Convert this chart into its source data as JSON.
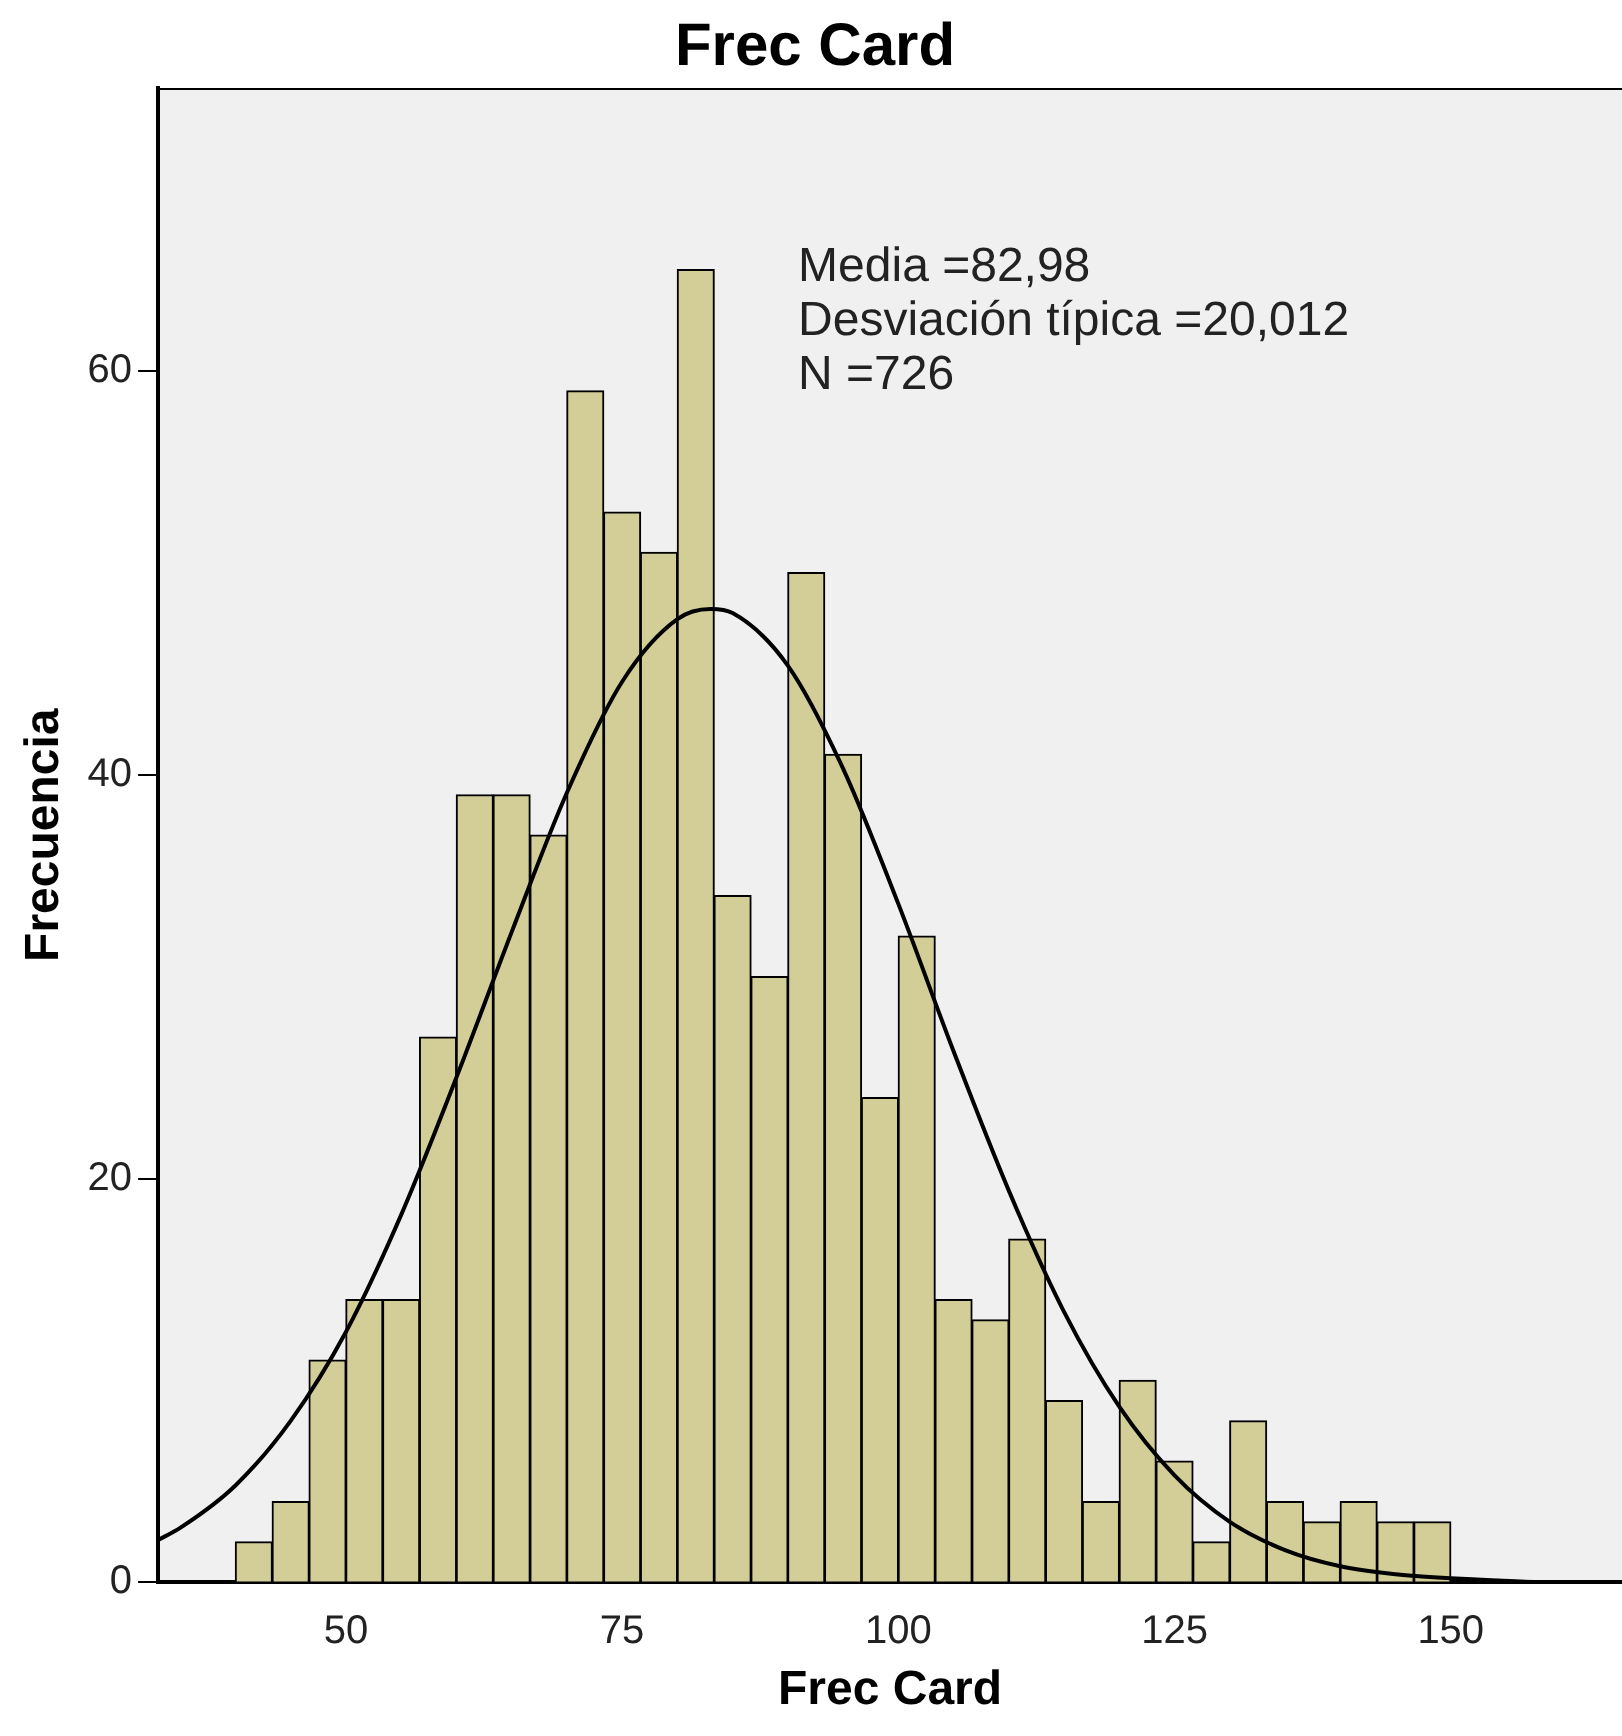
{
  "chart_data": {
    "type": "histogram",
    "title": "Frec Card",
    "xlabel": "Frec Card",
    "ylabel": "Frecuencia",
    "bins": [
      40,
      43.33,
      46.67,
      50,
      53.33,
      56.67,
      60,
      63.33,
      66.67,
      70,
      73.33,
      76.67,
      80,
      83.33,
      86.67,
      90,
      93.33,
      96.67,
      100,
      103.33,
      106.67,
      110,
      113.33,
      116.67,
      120,
      123.33,
      126.67,
      130,
      133.33,
      136.67,
      140,
      143.33,
      146.67,
      150
    ],
    "values": [
      2,
      4,
      11,
      14,
      14,
      27,
      39,
      39,
      37,
      59,
      53,
      51,
      65,
      34,
      30,
      50,
      41,
      24,
      32,
      14,
      13,
      17,
      9,
      4,
      10,
      6,
      2,
      8,
      4,
      3,
      4,
      3,
      3
    ],
    "color": "#d3ce97",
    "series": [
      {
        "type": "line",
        "color": "#000000",
        "x": [
          33,
          35,
          40,
          45,
          50,
          55,
          60,
          65,
          70,
          75,
          80,
          83,
          85,
          90,
          95,
          100,
          105,
          110,
          115,
          120,
          125,
          130,
          135,
          140,
          145,
          150,
          160,
          165
        ],
        "values": [
          2.1,
          2.7,
          4.8,
          8,
          12.4,
          18.2,
          25,
          32.2,
          39.1,
          44.6,
          47.7,
          48.2,
          48,
          45.4,
          40.3,
          33.6,
          26.3,
          19.4,
          13.4,
          8.7,
          5.3,
          3,
          1.6,
          0.8,
          0.4,
          0.2,
          0,
          0
        ]
      }
    ],
    "annotations": [
      "Media =82,98",
      "Desviación típica =20,012",
      "N =726"
    ],
    "xlim": [
      33,
      165.5
    ],
    "ylim": [
      0,
      74
    ],
    "xticks": [
      50,
      75,
      100,
      125,
      150
    ],
    "yticks": [
      0,
      20,
      40,
      60
    ],
    "grid": false,
    "legend": false,
    "marker": "none"
  }
}
